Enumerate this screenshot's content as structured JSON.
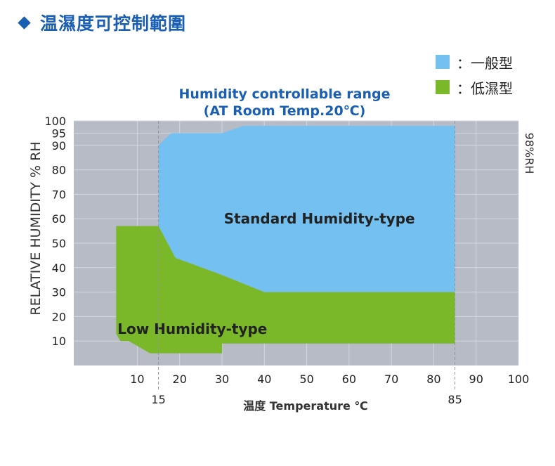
{
  "header": {
    "title": "温濕度可控制範圍"
  },
  "legend": {
    "items": [
      {
        "label": "：一般型",
        "color": "#74c0f0"
      },
      {
        "label": "：低濕型",
        "color": "#7ab82a"
      }
    ]
  },
  "chart_data": {
    "type": "area",
    "title": "Humidity controllable range",
    "subtitle": "(AT Room Temp.20℃)",
    "xlabel": "温度 Temperature ℃",
    "ylabel": "RELATIVE HUMIDITY % RH",
    "right_label": "98%RH",
    "xlim": [
      -5,
      100
    ],
    "ylim": [
      0,
      100
    ],
    "x_ticks": [
      10,
      20,
      30,
      40,
      50,
      60,
      70,
      80,
      90,
      100
    ],
    "x_ticks_extra": [
      15,
      85
    ],
    "y_ticks": [
      10,
      20,
      30,
      40,
      50,
      60,
      70,
      80,
      90,
      95,
      100
    ],
    "background_color": "#b6bbc6",
    "grid": true,
    "series": [
      {
        "name": "Standard Humidity-type",
        "color": "#74c0f0",
        "polygon": [
          [
            15,
            90
          ],
          [
            18,
            95
          ],
          [
            30,
            95
          ],
          [
            35,
            98
          ],
          [
            85,
            98
          ],
          [
            85,
            30
          ],
          [
            40,
            30
          ],
          [
            30,
            37
          ],
          [
            19,
            44
          ],
          [
            15,
            57
          ]
        ]
      },
      {
        "name": "Low Humidity-type",
        "color": "#7ab82a",
        "polygon": [
          [
            5,
            57
          ],
          [
            15,
            57
          ],
          [
            19,
            44
          ],
          [
            30,
            37
          ],
          [
            40,
            30
          ],
          [
            85,
            30
          ],
          [
            85,
            9
          ],
          [
            30,
            9
          ],
          [
            30,
            5
          ],
          [
            13,
            5
          ],
          [
            8,
            10
          ],
          [
            6,
            10
          ],
          [
            5,
            13
          ]
        ]
      }
    ]
  }
}
